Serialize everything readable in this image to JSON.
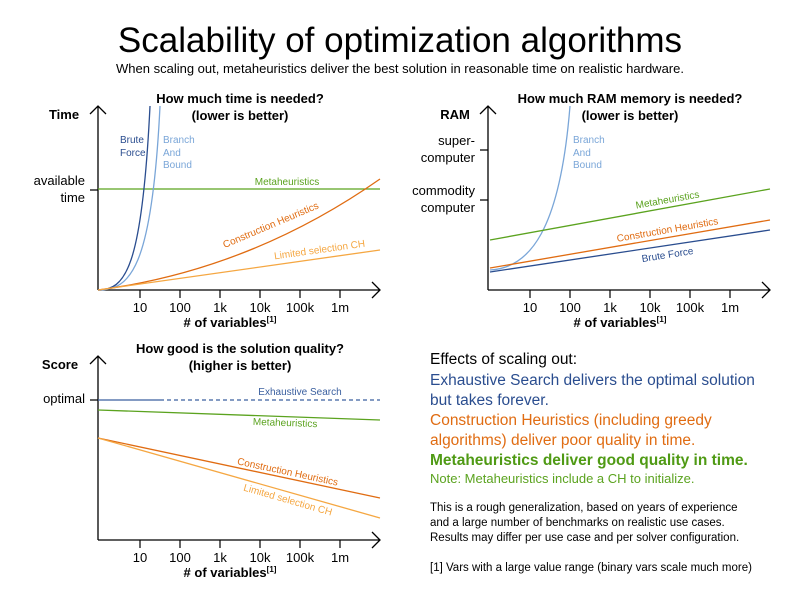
{
  "title": "Scalability of optimization algorithms",
  "subtitle": "When scaling out, metaheuristics deliver the best solution in reasonable time on realistic hardware.",
  "colors": {
    "brute_force": "#2a4d8f",
    "branch_and_bound": "#7aa6d8",
    "metaheuristics": "#5ba31f",
    "construction_heuristics": "#e06c12",
    "limited_selection_ch": "#f5a742",
    "exhaustive_search": "#3a5f9f"
  },
  "x_ticks": [
    "10",
    "100",
    "1k",
    "10k",
    "100k",
    "1m"
  ],
  "x_label": "# of variables",
  "x_label_footnote": "[1]",
  "time_chart": {
    "title_line1": "How much time is needed?",
    "title_line2": "(lower is better)",
    "y_label": "Time",
    "y_mark_line1": "available",
    "y_mark_line2": "time",
    "labels": {
      "brute1": "Brute",
      "brute2": "Force",
      "bb1": "Branch",
      "bb2": "And",
      "bb3": "Bound",
      "meta": "Metaheuristics",
      "ch": "Construction Heuristics",
      "lch": "Limited selection CH"
    }
  },
  "ram_chart": {
    "title_line1": "How much RAM memory is needed?",
    "title_line2": "(lower is better)",
    "y_label": "RAM",
    "super1": "super-",
    "super2": "computer",
    "commodity1": "commodity",
    "commodity2": "computer",
    "labels": {
      "bb1": "Branch",
      "bb2": "And",
      "bb3": "Bound",
      "meta": "Metaheuristics",
      "ch": "Construction Heuristics",
      "bf": "Brute Force"
    }
  },
  "score_chart": {
    "title_line1": "How good is the solution quality?",
    "title_line2": "(higher is better)",
    "y_label": "Score",
    "y_mark": "optimal",
    "labels": {
      "es": "Exhaustive Search",
      "meta": "Metaheuristics",
      "ch": "Construction Heuristics",
      "lch": "Limited selection CH"
    }
  },
  "effects": {
    "heading": "Effects of scaling out:",
    "es1": "Exhaustive Search delivers the optimal solution",
    "es2": "but takes forever.",
    "ch1": "Construction Heuristics (including greedy",
    "ch2": "algorithms) deliver poor quality in time.",
    "meta": "Metaheuristics deliver good quality in time.",
    "note": "Note: Metaheuristics include a CH to initialize.",
    "disc1": "This is a rough generalization, based on years of experience",
    "disc2": "and a large number of benchmarks on realistic use cases.",
    "disc3": "Results may differ per use case and per solver configuration.",
    "footnote": "[1] Vars with a large value range (binary vars scale much more)"
  }
}
